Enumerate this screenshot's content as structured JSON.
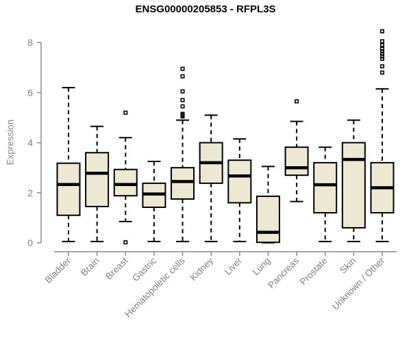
{
  "chart_data": {
    "type": "boxplot",
    "title": "ENSG00000205853 - RFPL3S",
    "ylabel": "Expression",
    "xlabel": "",
    "ylim": [
      0,
      8
    ],
    "yticks": [
      0,
      2,
      4,
      6,
      8
    ],
    "grid": false,
    "legend": "none",
    "categories": [
      "Bladder",
      "Brain",
      "Breast",
      "Gastric",
      "Hematopoietic cells",
      "Kidney",
      "Liver",
      "Lung",
      "Pancreas",
      "Prostate",
      "Skin",
      "Unknown / Other"
    ],
    "series": [
      {
        "name": "Bladder",
        "low": 0.05,
        "q1": 1.1,
        "median": 2.33,
        "q3": 3.18,
        "high": 6.2,
        "outliers": []
      },
      {
        "name": "Brain",
        "low": 0.05,
        "q1": 1.45,
        "median": 2.78,
        "q3": 3.6,
        "high": 4.65,
        "outliers": []
      },
      {
        "name": "Breast",
        "low": 0.85,
        "q1": 1.88,
        "median": 2.33,
        "q3": 2.93,
        "high": 4.2,
        "outliers": [
          5.2,
          0.02
        ]
      },
      {
        "name": "Gastric",
        "low": 0.05,
        "q1": 1.42,
        "median": 1.95,
        "q3": 2.38,
        "high": 3.25,
        "outliers": []
      },
      {
        "name": "Hematopoietic cells",
        "low": 0.05,
        "q1": 1.75,
        "median": 2.45,
        "q3": 3.0,
        "high": 4.9,
        "outliers": [
          5.05,
          5.1,
          5.15,
          5.45,
          5.7,
          6.05,
          6.65,
          6.95
        ]
      },
      {
        "name": "Kidney",
        "low": 0.05,
        "q1": 2.38,
        "median": 3.2,
        "q3": 4.0,
        "high": 5.1,
        "outliers": []
      },
      {
        "name": "Liver",
        "low": 0.05,
        "q1": 1.6,
        "median": 2.67,
        "q3": 3.3,
        "high": 4.15,
        "outliers": []
      },
      {
        "name": "Lung",
        "low": 0.0,
        "q1": 0.02,
        "median": 0.42,
        "q3": 1.86,
        "high": 3.05,
        "outliers": []
      },
      {
        "name": "Pancreas",
        "low": 1.65,
        "q1": 2.7,
        "median": 3.0,
        "q3": 3.82,
        "high": 4.85,
        "outliers": [
          5.65
        ]
      },
      {
        "name": "Prostate",
        "low": 0.05,
        "q1": 1.2,
        "median": 2.32,
        "q3": 3.2,
        "high": 3.82,
        "outliers": []
      },
      {
        "name": "Skin",
        "low": 0.05,
        "q1": 0.6,
        "median": 3.33,
        "q3": 4.0,
        "high": 4.9,
        "outliers": []
      },
      {
        "name": "Unknown / Other",
        "low": 0.05,
        "q1": 1.2,
        "median": 2.2,
        "q3": 3.2,
        "high": 6.15,
        "outliers": [
          6.8,
          7.05,
          7.35,
          7.45,
          7.55,
          7.65,
          7.75,
          7.9,
          8.05,
          8.45
        ]
      }
    ],
    "colors": {
      "box_fill": "#EDE8D1",
      "box_border": "#000000",
      "median": "#000000",
      "whisker": "#000000",
      "axis": "#8a8a8a",
      "tick_label": "#808080",
      "title": "#000000",
      "background": "#ffffff"
    }
  }
}
